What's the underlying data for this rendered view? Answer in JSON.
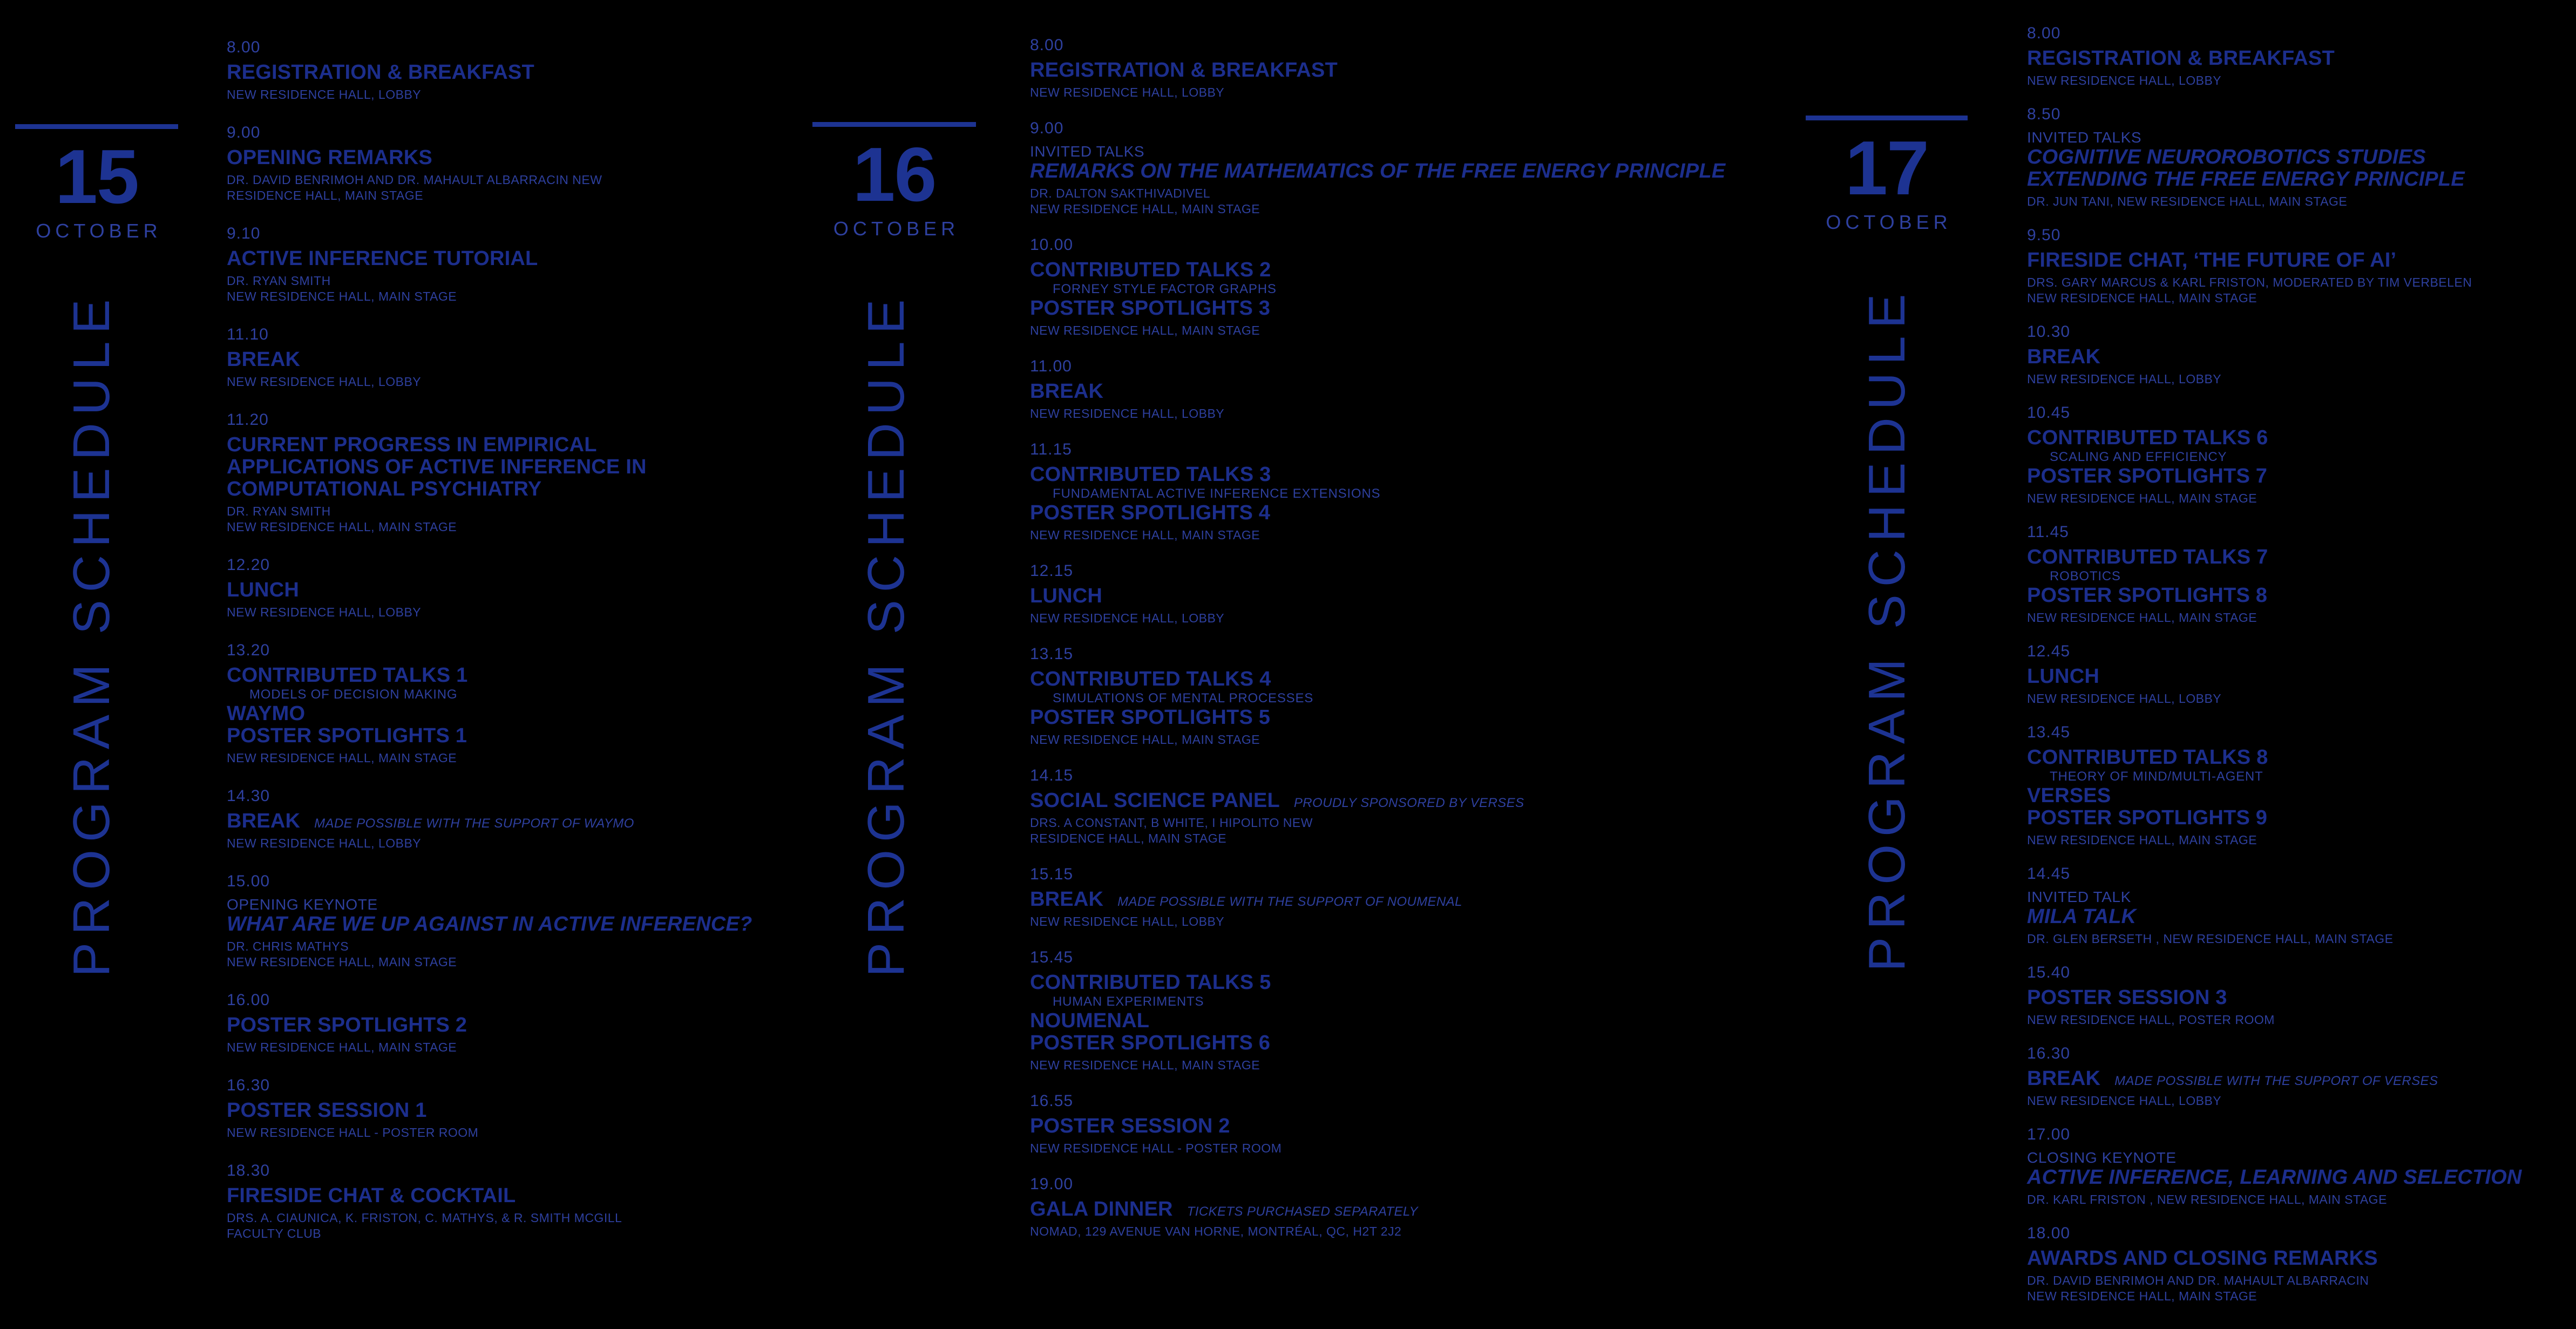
{
  "poster": {
    "background": "#000000",
    "accent_bold": "#1c2e8c",
    "accent_light": "#2e409f",
    "accent_rule": "#1d3392",
    "days": [
      {
        "number": "15",
        "month": "OCTOBER",
        "sidebar_label": "PROGRAM SCHEDULE",
        "events": [
          {
            "time": "8.00",
            "rows": [
              {
                "kind": "title",
                "text": "REGISTRATION & BREAKFAST"
              },
              {
                "kind": "detail",
                "text": "NEW RESIDENCE HALL, LOBBY"
              }
            ]
          },
          {
            "time": "9.00",
            "rows": [
              {
                "kind": "title",
                "text": "OPENING REMARKS"
              },
              {
                "kind": "detail",
                "text": "DR. DAVID BENRIMOH AND DR. MAHAULT ALBARRACIN NEW"
              },
              {
                "kind": "detail",
                "text": "RESIDENCE HALL, MAIN STAGE"
              }
            ]
          },
          {
            "time": "9.10",
            "rows": [
              {
                "kind": "title",
                "text": "ACTIVE INFERENCE TUTORIAL"
              },
              {
                "kind": "detail",
                "text": "DR. RYAN SMITH"
              },
              {
                "kind": "detail",
                "text": "NEW RESIDENCE HALL, MAIN STAGE"
              }
            ]
          },
          {
            "time": "11.10",
            "rows": [
              {
                "kind": "title",
                "text": "BREAK"
              },
              {
                "kind": "detail",
                "text": "NEW RESIDENCE HALL, LOBBY"
              }
            ]
          },
          {
            "time": "11.20",
            "rows": [
              {
                "kind": "title",
                "text": "CURRENT PROGRESS IN EMPIRICAL"
              },
              {
                "kind": "title",
                "text": "APPLICATIONS OF ACTIVE INFERENCE IN"
              },
              {
                "kind": "title",
                "text": "COMPUTATIONAL PSYCHIATRY"
              },
              {
                "kind": "detail",
                "text": "DR. RYAN SMITH"
              },
              {
                "kind": "detail",
                "text": "NEW RESIDENCE HALL, MAIN STAGE"
              }
            ]
          },
          {
            "time": "12.20",
            "rows": [
              {
                "kind": "title",
                "text": "LUNCH"
              },
              {
                "kind": "detail",
                "text": "NEW RESIDENCE HALL, LOBBY"
              }
            ]
          },
          {
            "time": "13.20",
            "rows": [
              {
                "kind": "title",
                "text": "CONTRIBUTED TALKS 1"
              },
              {
                "kind": "sublabel",
                "text": "MODELS OF DECISION MAKING"
              },
              {
                "kind": "title",
                "text": "WAYMO"
              },
              {
                "kind": "title",
                "text": "POSTER SPOTLIGHTS 1"
              },
              {
                "kind": "detail",
                "text": "NEW RESIDENCE HALL, MAIN STAGE"
              }
            ]
          },
          {
            "time": "14.30",
            "rows": [
              {
                "kind": "title",
                "text": "BREAK",
                "suffix": "MADE POSSIBLE WITH THE SUPPORT OF WAYMO"
              },
              {
                "kind": "detail",
                "text": "NEW RESIDENCE HALL, LOBBY"
              }
            ]
          },
          {
            "time": "15.00",
            "rows": [
              {
                "kind": "kicker",
                "text": "OPENING KEYNOTE"
              },
              {
                "kind": "title-italic",
                "text": "WHAT ARE WE UP AGAINST IN ACTIVE INFERENCE?"
              },
              {
                "kind": "detail",
                "text": "DR. CHRIS MATHYS"
              },
              {
                "kind": "detail",
                "text": "NEW RESIDENCE HALL, MAIN STAGE"
              }
            ]
          },
          {
            "time": "16.00",
            "rows": [
              {
                "kind": "title",
                "text": "POSTER SPOTLIGHTS 2"
              },
              {
                "kind": "detail",
                "text": "NEW RESIDENCE HALL, MAIN STAGE"
              }
            ]
          },
          {
            "time": "16.30",
            "rows": [
              {
                "kind": "title",
                "text": "POSTER SESSION 1"
              },
              {
                "kind": "detail",
                "text": "NEW RESIDENCE HALL - POSTER ROOM"
              }
            ]
          },
          {
            "time": "18.30",
            "rows": [
              {
                "kind": "title",
                "text": "FIRESIDE CHAT & COCKTAIL"
              },
              {
                "kind": "detail",
                "text": "DRS. A. CIAUNICA, K. FRISTON, C. MATHYS, & R. SMITH MCGILL"
              },
              {
                "kind": "detail",
                "text": "FACULTY CLUB"
              }
            ]
          }
        ]
      },
      {
        "number": "16",
        "month": "OCTOBER",
        "sidebar_label": "PROGRAM SCHEDULE",
        "events": [
          {
            "time": "8.00",
            "rows": [
              {
                "kind": "title",
                "text": "REGISTRATION & BREAKFAST"
              },
              {
                "kind": "detail",
                "text": "NEW RESIDENCE HALL, LOBBY"
              }
            ]
          },
          {
            "time": "9.00",
            "rows": [
              {
                "kind": "kicker",
                "text": "INVITED TALKS"
              },
              {
                "kind": "title-italic",
                "text": "REMARKS ON THE MATHEMATICS OF THE FREE ENERGY PRINCIPLE"
              },
              {
                "kind": "detail",
                "text": "DR. DALTON SAKTHIVADIVEL"
              },
              {
                "kind": "detail",
                "text": "NEW RESIDENCE HALL, MAIN STAGE"
              }
            ]
          },
          {
            "time": "10.00",
            "rows": [
              {
                "kind": "title",
                "text": "CONTRIBUTED TALKS 2"
              },
              {
                "kind": "sublabel",
                "text": "FORNEY STYLE FACTOR GRAPHS"
              },
              {
                "kind": "title",
                "text": "POSTER SPOTLIGHTS 3"
              },
              {
                "kind": "detail",
                "text": "NEW RESIDENCE HALL, MAIN STAGE"
              }
            ]
          },
          {
            "time": "11.00",
            "rows": [
              {
                "kind": "title",
                "text": "BREAK"
              },
              {
                "kind": "detail",
                "text": "NEW RESIDENCE HALL, LOBBY"
              }
            ]
          },
          {
            "time": "11.15",
            "rows": [
              {
                "kind": "title",
                "text": "CONTRIBUTED TALKS 3"
              },
              {
                "kind": "sublabel",
                "text": "FUNDAMENTAL ACTIVE INFERENCE EXTENSIONS"
              },
              {
                "kind": "title",
                "text": "POSTER SPOTLIGHTS 4"
              },
              {
                "kind": "detail",
                "text": "NEW RESIDENCE HALL, MAIN STAGE"
              }
            ]
          },
          {
            "time": "12.15",
            "rows": [
              {
                "kind": "title",
                "text": "LUNCH"
              },
              {
                "kind": "detail",
                "text": "NEW RESIDENCE HALL, LOBBY"
              }
            ]
          },
          {
            "time": "13.15",
            "rows": [
              {
                "kind": "title",
                "text": "CONTRIBUTED TALKS 4"
              },
              {
                "kind": "sublabel",
                "text": "SIMULATIONS OF MENTAL PROCESSES"
              },
              {
                "kind": "title",
                "text": "POSTER SPOTLIGHTS 5"
              },
              {
                "kind": "detail",
                "text": "NEW RESIDENCE HALL, MAIN STAGE"
              }
            ]
          },
          {
            "time": "14.15",
            "rows": [
              {
                "kind": "title",
                "text": "SOCIAL SCIENCE PANEL",
                "suffix": "PROUDLY SPONSORED BY VERSES"
              },
              {
                "kind": "detail",
                "text": "DRS. A CONSTANT, B WHITE, I HIPOLITO NEW"
              },
              {
                "kind": "detail",
                "text": "RESIDENCE HALL, MAIN STAGE"
              }
            ]
          },
          {
            "time": "15.15",
            "rows": [
              {
                "kind": "title",
                "text": "BREAK",
                "suffix": "MADE POSSIBLE WITH THE SUPPORT OF NOUMENAL"
              },
              {
                "kind": "detail",
                "text": "NEW RESIDENCE HALL, LOBBY"
              }
            ]
          },
          {
            "time": "15.45",
            "rows": [
              {
                "kind": "title",
                "text": "CONTRIBUTED TALKS 5"
              },
              {
                "kind": "sublabel",
                "text": "HUMAN EXPERIMENTS"
              },
              {
                "kind": "title",
                "text": "NOUMENAL"
              },
              {
                "kind": "title",
                "text": "POSTER SPOTLIGHTS 6"
              },
              {
                "kind": "detail",
                "text": "NEW RESIDENCE HALL, MAIN STAGE"
              }
            ]
          },
          {
            "time": "16.55",
            "rows": [
              {
                "kind": "title",
                "text": "POSTER SESSION 2"
              },
              {
                "kind": "detail",
                "text": "NEW RESIDENCE HALL - POSTER ROOM"
              }
            ]
          },
          {
            "time": "19.00",
            "rows": [
              {
                "kind": "title",
                "text": "GALA DINNER",
                "suffix": "TICKETS PURCHASED SEPARATELY"
              },
              {
                "kind": "detail",
                "text": "NOMAD, 129 AVENUE VAN HORNE, MONTRÉAL, QC, H2T 2J2"
              }
            ]
          }
        ]
      },
      {
        "number": "17",
        "month": "OCTOBER",
        "sidebar_label": "PROGRAM SCHEDULE",
        "events": [
          {
            "time": "8.00",
            "rows": [
              {
                "kind": "title",
                "text": "REGISTRATION & BREAKFAST"
              },
              {
                "kind": "detail",
                "text": "NEW RESIDENCE HALL, LOBBY"
              }
            ]
          },
          {
            "time": "8.50",
            "rows": [
              {
                "kind": "kicker",
                "text": "INVITED TALKS"
              },
              {
                "kind": "title-italic",
                "text": "COGNITIVE NEUROROBOTICS STUDIES"
              },
              {
                "kind": "title-italic",
                "text": "EXTENDING THE FREE ENERGY PRINCIPLE"
              },
              {
                "kind": "detail",
                "text": "DR. JUN TANI, NEW RESIDENCE HALL, MAIN STAGE"
              }
            ]
          },
          {
            "time": "9.50",
            "rows": [
              {
                "kind": "title",
                "text": "FIRESIDE CHAT, ‘THE FUTURE OF AI’"
              },
              {
                "kind": "detail",
                "text": "DRS. GARY MARCUS & KARL FRISTON, MODERATED BY TIM VERBELEN"
              },
              {
                "kind": "detail",
                "text": "NEW RESIDENCE HALL, MAIN STAGE"
              }
            ]
          },
          {
            "time": "10.30",
            "rows": [
              {
                "kind": "title",
                "text": "BREAK"
              },
              {
                "kind": "detail",
                "text": "NEW RESIDENCE HALL, LOBBY"
              }
            ]
          },
          {
            "time": "10.45",
            "rows": [
              {
                "kind": "title",
                "text": "CONTRIBUTED TALKS 6"
              },
              {
                "kind": "sublabel",
                "text": "SCALING AND EFFICIENCY"
              },
              {
                "kind": "title",
                "text": "POSTER SPOTLIGHTS 7"
              },
              {
                "kind": "detail",
                "text": "NEW RESIDENCE HALL, MAIN STAGE"
              }
            ]
          },
          {
            "time": "11.45",
            "rows": [
              {
                "kind": "title",
                "text": "CONTRIBUTED TALKS 7"
              },
              {
                "kind": "sublabel",
                "text": "ROBOTICS"
              },
              {
                "kind": "title",
                "text": "POSTER SPOTLIGHTS 8"
              },
              {
                "kind": "detail",
                "text": "NEW RESIDENCE HALL, MAIN STAGE"
              }
            ]
          },
          {
            "time": "12.45",
            "rows": [
              {
                "kind": "title",
                "text": "LUNCH"
              },
              {
                "kind": "detail",
                "text": "NEW RESIDENCE HALL, LOBBY"
              }
            ]
          },
          {
            "time": "13.45",
            "rows": [
              {
                "kind": "title",
                "text": "CONTRIBUTED TALKS 8"
              },
              {
                "kind": "sublabel",
                "text": "THEORY OF MIND/MULTI-AGENT"
              },
              {
                "kind": "title",
                "text": "VERSES"
              },
              {
                "kind": "title",
                "text": "POSTER SPOTLIGHTS 9"
              },
              {
                "kind": "detail",
                "text": "NEW RESIDENCE HALL, MAIN STAGE"
              }
            ]
          },
          {
            "time": "14.45",
            "rows": [
              {
                "kind": "kicker",
                "text": "INVITED TALK"
              },
              {
                "kind": "title-italic",
                "text": "MILA TALK"
              },
              {
                "kind": "detail",
                "text": "DR. GLEN BERSETH , NEW RESIDENCE HALL, MAIN STAGE"
              }
            ]
          },
          {
            "time": "15.40",
            "rows": [
              {
                "kind": "title",
                "text": "POSTER SESSION 3"
              },
              {
                "kind": "detail",
                "text": "NEW RESIDENCE HALL, POSTER ROOM"
              }
            ]
          },
          {
            "time": "16.30",
            "rows": [
              {
                "kind": "title",
                "text": "BREAK",
                "suffix": "MADE POSSIBLE WITH THE SUPPORT OF VERSES"
              },
              {
                "kind": "detail",
                "text": "NEW RESIDENCE HALL, LOBBY"
              }
            ]
          },
          {
            "time": "17.00",
            "rows": [
              {
                "kind": "kicker",
                "text": "CLOSING KEYNOTE"
              },
              {
                "kind": "title-italic",
                "text": "ACTIVE INFERENCE, LEARNING AND SELECTION"
              },
              {
                "kind": "detail",
                "text": "DR. KARL FRISTON , NEW RESIDENCE HALL, MAIN STAGE"
              }
            ]
          },
          {
            "time": "18.00",
            "rows": [
              {
                "kind": "title",
                "text": "AWARDS AND CLOSING REMARKS"
              },
              {
                "kind": "detail",
                "text": "DR. DAVID BENRIMOH AND DR. MAHAULT ALBARRACIN"
              },
              {
                "kind": "detail",
                "text": "NEW RESIDENCE HALL, MAIN STAGE"
              }
            ]
          }
        ]
      }
    ]
  }
}
